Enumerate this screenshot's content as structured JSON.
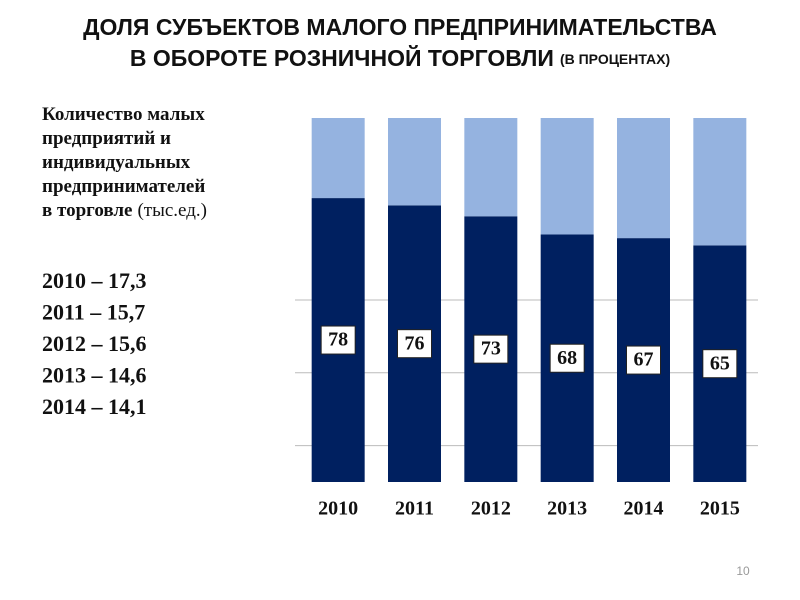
{
  "slide": {
    "title_line1": "ДОЛЯ СУБЪЕКТОВ МАЛОГО ПРЕДПРИНИМАТЕЛЬСТВА",
    "title_line2": "В ОБОРОТЕ РОЗНИЧНОЙ ТОРГОВЛИ",
    "title_note": "(В ПРОЦЕНТАХ)",
    "side_heading": [
      "Количество малых",
      "предприятий и",
      "индивидуальных",
      "предпринимателей",
      "в торговле"
    ],
    "side_heading_unit": "(тыс.ед.)",
    "side_list": [
      "2010 – 17,3",
      "2011 – 15,7",
      "2012 – 15,6",
      "2013 – 14,6",
      "2014 – 14,1"
    ],
    "page_number": "10"
  },
  "chart_data": {
    "type": "stacked_bar",
    "categories": [
      "2010",
      "2011",
      "2012",
      "2013",
      "2014",
      "2015"
    ],
    "series": [
      {
        "color": "#002060",
        "values": [
          78,
          76,
          73,
          68,
          67,
          65
        ]
      },
      {
        "color": "#95b3e0",
        "values": [
          22,
          24,
          27,
          32,
          33,
          35
        ]
      }
    ],
    "ylim": [
      0,
      100
    ],
    "gridlines": [
      10,
      30,
      50
    ],
    "labeled_series": 0
  }
}
